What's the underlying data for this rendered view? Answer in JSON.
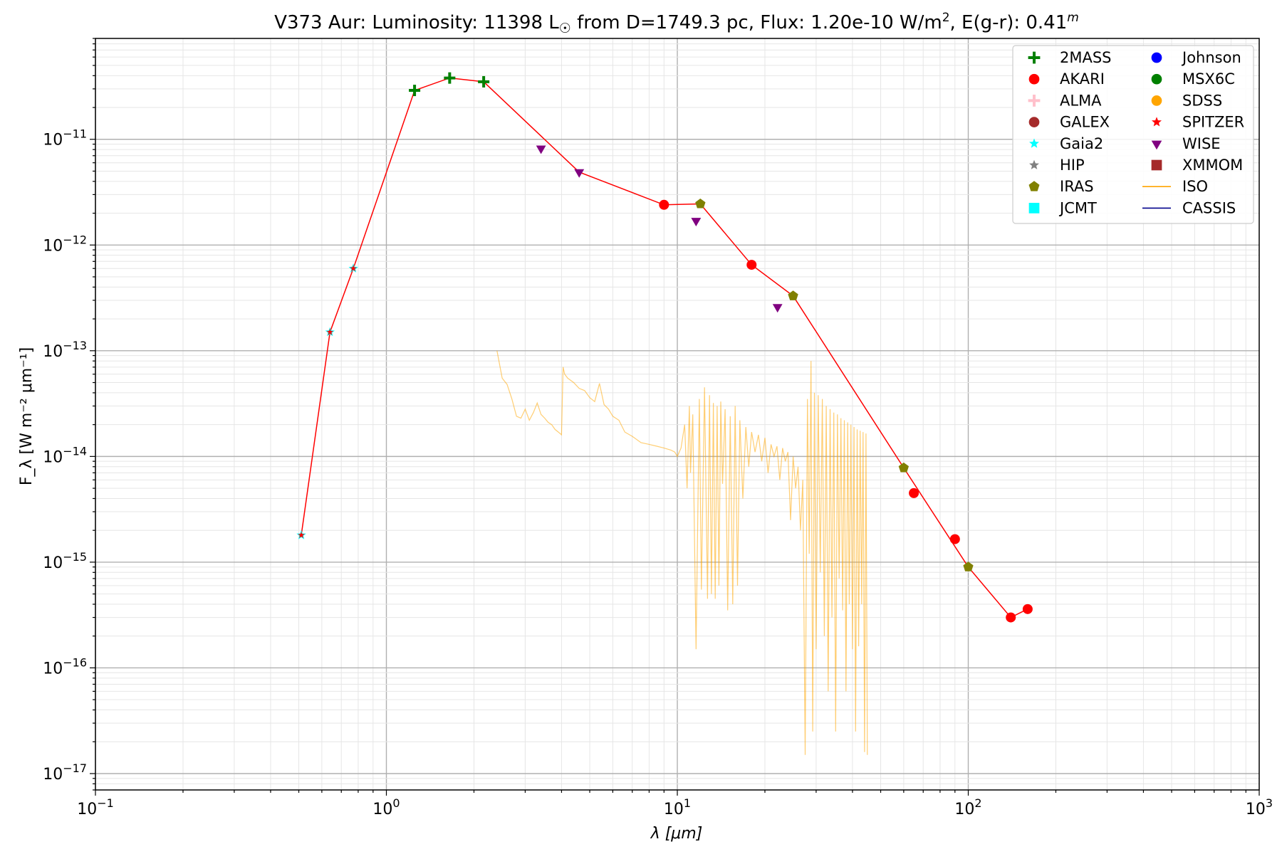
{
  "chart_data": {
    "type": "scatter",
    "title": {
      "star": "V373 Aur:",
      "lum_label": "Luminosity: 11398 L",
      "lum_sub": "☉",
      "dist": " from D=1749.3 pc, Flux: 1.20e-10 W/m",
      "flux_sup": "2",
      "ext": ", E(g-r): 0.41",
      "ext_sup": "m"
    },
    "xlabel": "λ [μm]",
    "ylabel": "F_λ [W m⁻² μm⁻¹]",
    "xscale": "log",
    "yscale": "log",
    "xlim": [
      0.1,
      1000
    ],
    "ylim": [
      7e-18,
      9e-11
    ],
    "x_ticks": [
      {
        "value": 0.1,
        "base": "10",
        "exp": "−1"
      },
      {
        "value": 1,
        "base": "10",
        "exp": "0"
      },
      {
        "value": 10,
        "base": "10",
        "exp": "1"
      },
      {
        "value": 100,
        "base": "10",
        "exp": "2"
      },
      {
        "value": 1000,
        "base": "10",
        "exp": "3"
      }
    ],
    "y_ticks": [
      {
        "value": 1e-17,
        "base": "10",
        "exp": "−17"
      },
      {
        "value": 1e-16,
        "base": "10",
        "exp": "−16"
      },
      {
        "value": 1e-15,
        "base": "10",
        "exp": "−15"
      },
      {
        "value": 1e-14,
        "base": "10",
        "exp": "−14"
      },
      {
        "value": 1e-13,
        "base": "10",
        "exp": "−13"
      },
      {
        "value": 1e-12,
        "base": "10",
        "exp": "−12"
      },
      {
        "value": 1e-11,
        "base": "10",
        "exp": "−11"
      }
    ],
    "grid": true,
    "legend_position": "top-right",
    "legend": [
      {
        "name": "2MASS",
        "marker": "plus",
        "color": "#008000"
      },
      {
        "name": "AKARI",
        "marker": "circle",
        "color": "#ff0000"
      },
      {
        "name": "ALMA",
        "marker": "plus",
        "color": "#ffc0cb"
      },
      {
        "name": "GALEX",
        "marker": "circle",
        "color": "#a52a2a"
      },
      {
        "name": "Gaia2",
        "marker": "star",
        "color": "#00ffff"
      },
      {
        "name": "HIP",
        "marker": "star",
        "color": "#808080"
      },
      {
        "name": "IRAS",
        "marker": "pentagon",
        "color": "#808000"
      },
      {
        "name": "JCMT",
        "marker": "square",
        "color": "#00ffff"
      },
      {
        "name": "Johnson",
        "marker": "circle",
        "color": "#0000ff"
      },
      {
        "name": "MSX6C",
        "marker": "circle",
        "color": "#008000"
      },
      {
        "name": "SDSS",
        "marker": "circle",
        "color": "#ffa500"
      },
      {
        "name": "SPITZER",
        "marker": "star",
        "color": "#ff0000"
      },
      {
        "name": "WISE",
        "marker": "triangle-down",
        "color": "#800080"
      },
      {
        "name": "XMMOM",
        "marker": "square",
        "color": "#a52a2a"
      },
      {
        "name": "ISO",
        "marker": "line",
        "color": "#ffa500"
      },
      {
        "name": "CASSIS",
        "marker": "line",
        "color": "#00008b"
      }
    ],
    "sed_line": {
      "color": "#ff0000",
      "x": [
        0.51,
        0.64,
        0.77,
        1.25,
        1.65,
        2.16,
        4.6,
        9.0,
        12.0,
        18.0,
        25.0,
        60.0,
        100.0,
        140.0,
        160.0
      ],
      "y": [
        1.8e-15,
        1.5e-13,
        6e-13,
        2.9e-11,
        3.8e-11,
        3.5e-11,
        4.9e-12,
        2.4e-12,
        2.45e-12,
        6.5e-13,
        3.3e-13,
        7.8e-15,
        9e-16,
        3e-16,
        3.6e-16
      ]
    },
    "series": [
      {
        "name": "2MASS",
        "marker": "plus",
        "color": "#008000",
        "x": [
          1.25,
          1.65,
          2.16
        ],
        "y": [
          2.9e-11,
          3.8e-11,
          3.5e-11
        ]
      },
      {
        "name": "AKARI",
        "marker": "circle",
        "color": "#ff0000",
        "x": [
          9.0,
          18.0,
          65.0,
          90.0,
          140.0,
          160.0
        ],
        "y": [
          2.4e-12,
          6.5e-13,
          4.5e-15,
          1.65e-15,
          3e-16,
          3.6e-16
        ]
      },
      {
        "name": "Gaia2",
        "marker": "star",
        "color": "#00ffff",
        "x": [
          0.51,
          0.64,
          0.77
        ],
        "y": [
          1.8e-15,
          1.5e-13,
          6e-13
        ]
      },
      {
        "name": "SPITZER",
        "marker": "star-small",
        "color": "#ff0000",
        "x": [
          0.51,
          0.64,
          0.77
        ],
        "y": [
          1.8e-15,
          1.5e-13,
          6e-13
        ]
      },
      {
        "name": "IRAS",
        "marker": "pentagon",
        "color": "#808000",
        "x": [
          12.0,
          25.0,
          60.0,
          100.0
        ],
        "y": [
          2.45e-12,
          3.3e-13,
          7.8e-15,
          9e-16
        ]
      },
      {
        "name": "WISE",
        "marker": "triangle-down",
        "color": "#800080",
        "x": [
          3.4,
          4.6,
          11.6,
          22.1
        ],
        "y": [
          8.2e-12,
          4.9e-12,
          1.7e-12,
          2.6e-13
        ]
      }
    ],
    "iso_spectrum": {
      "name": "ISO",
      "color": "#ffa500",
      "x": [
        2.4,
        2.5,
        2.6,
        2.7,
        2.8,
        2.9,
        3.0,
        3.1,
        3.2,
        3.3,
        3.4,
        3.5,
        3.6,
        3.7,
        3.8,
        3.9,
        4.0,
        4.05,
        4.1,
        4.2,
        4.4,
        4.6,
        4.8,
        5.0,
        5.2,
        5.4,
        5.6,
        5.8,
        6.0,
        6.3,
        6.6,
        7.0,
        7.5,
        8.0,
        8.5,
        9.0,
        9.5,
        9.8,
        10.0,
        10.3,
        10.6,
        10.8,
        11.0,
        11.1,
        11.3,
        11.6,
        11.9,
        12.1,
        12.4,
        12.7,
        12.9,
        13.1,
        13.3,
        13.5,
        13.7,
        13.9,
        14.1,
        14.3,
        14.6,
        14.9,
        15.2,
        15.5,
        15.8,
        16.1,
        16.4,
        16.8,
        17.2,
        17.6,
        18.0,
        18.5,
        19.0,
        19.5,
        20.0,
        20.5,
        21.0,
        21.5,
        22.0,
        22.5,
        23.0,
        23.5,
        24.0,
        24.5,
        25.0,
        25.5,
        26.0,
        26.5,
        27.0,
        27.5,
        28.0,
        28.4,
        28.8,
        29.2,
        29.6,
        30.0,
        30.5,
        31.0,
        31.5,
        32.0,
        32.5,
        33.0,
        33.5,
        34.0,
        34.5,
        35.0,
        35.5,
        36.0,
        36.5,
        37.0,
        37.5,
        38.0,
        38.5,
        39.0,
        39.5,
        40.0,
        40.5,
        41.0,
        41.5,
        42.0,
        42.5,
        43.0,
        43.5,
        44.0,
        44.5,
        45.0
      ],
      "y": [
        1e-13,
        5.5e-14,
        4.8e-14,
        3.5e-14,
        2.4e-14,
        2.3e-14,
        2.8e-14,
        2.2e-14,
        2.6e-14,
        3.2e-14,
        2.5e-14,
        2.3e-14,
        2.1e-14,
        2e-14,
        1.8e-14,
        1.7e-14,
        1.6e-14,
        7e-14,
        6e-14,
        5.5e-14,
        5e-14,
        4.4e-14,
        4.2e-14,
        3.6e-14,
        3.3e-14,
        4.9e-14,
        3.1e-14,
        2.8e-14,
        2.4e-14,
        2.2e-14,
        1.7e-14,
        1.55e-14,
        1.35e-14,
        1.3e-14,
        1.25e-14,
        1.2e-14,
        1.15e-14,
        1.1e-14,
        1e-14,
        1.2e-14,
        2e-14,
        5e-15,
        3e-14,
        7e-15,
        2.5e-14,
        1.5e-16,
        3.5e-14,
        5.5e-16,
        4.5e-14,
        4.5e-16,
        3.8e-14,
        5e-16,
        3.2e-14,
        4.5e-16,
        3e-14,
        6e-16,
        3.3e-14,
        5.5e-15,
        2.8e-14,
        3.5e-16,
        2.4e-14,
        4e-16,
        3e-14,
        6e-16,
        2.2e-14,
        4e-15,
        1.9e-14,
        8e-15,
        1.7e-14,
        1.1e-14,
        1.6e-14,
        9e-15,
        1.5e-14,
        7e-15,
        1.3e-14,
        1e-14,
        1.25e-14,
        6e-15,
        1.2e-14,
        9e-15,
        1.1e-14,
        2.5e-15,
        1e-14,
        5e-15,
        8e-15,
        2e-15,
        6e-15,
        1.5e-17,
        3.5e-14,
        1.2e-15,
        8e-14,
        2.5e-17,
        4e-14,
        1.5e-16,
        3.8e-14,
        8e-16,
        3.5e-14,
        2e-16,
        3e-14,
        6e-17,
        2.8e-14,
        3e-16,
        2.6e-14,
        2.5e-17,
        2.5e-14,
        7e-16,
        2.3e-14,
        3.5e-16,
        2.2e-14,
        6e-17,
        2.1e-14,
        4e-16,
        2e-14,
        1.5e-16,
        1.9e-14,
        2.5e-17,
        1.8e-14,
        1.6e-16,
        1.75e-14,
        4e-16,
        1.7e-14,
        1.6e-17,
        1.65e-14,
        1.5e-17
      ]
    }
  }
}
